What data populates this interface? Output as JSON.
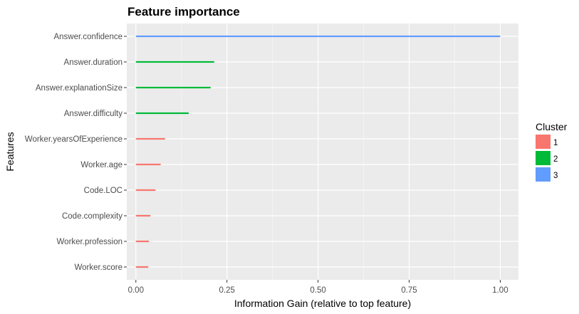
{
  "chart_data": {
    "type": "bar",
    "orientation": "horizontal",
    "title": "Feature importance",
    "xlabel": "Information Gain (relative to top feature)",
    "ylabel": "Features",
    "xlim": [
      -0.025,
      1.05
    ],
    "xticks": [
      0.0,
      0.25,
      0.5,
      0.75,
      1.0
    ],
    "xtick_labels": [
      "0.00",
      "0.25",
      "0.50",
      "0.75",
      "1.00"
    ],
    "grid": true,
    "legend": {
      "title": "Cluster",
      "position": "right",
      "entries": [
        {
          "label": "1",
          "color": "#F8766D"
        },
        {
          "label": "2",
          "color": "#00BA38"
        },
        {
          "label": "3",
          "color": "#619CFF"
        }
      ]
    },
    "categories": [
      "Answer.confidence",
      "Answer.duration",
      "Answer.explanationSize",
      "Answer.difficulty",
      "Worker.yearsOfExperience",
      "Worker.age",
      "Code.LOC",
      "Code.complexity",
      "Worker.profession",
      "Worker.score"
    ],
    "values": [
      1.0,
      0.215,
      0.205,
      0.145,
      0.08,
      0.068,
      0.054,
      0.04,
      0.036,
      0.034
    ],
    "clusters": [
      "3",
      "2",
      "2",
      "2",
      "1",
      "1",
      "1",
      "1",
      "1",
      "1"
    ]
  }
}
